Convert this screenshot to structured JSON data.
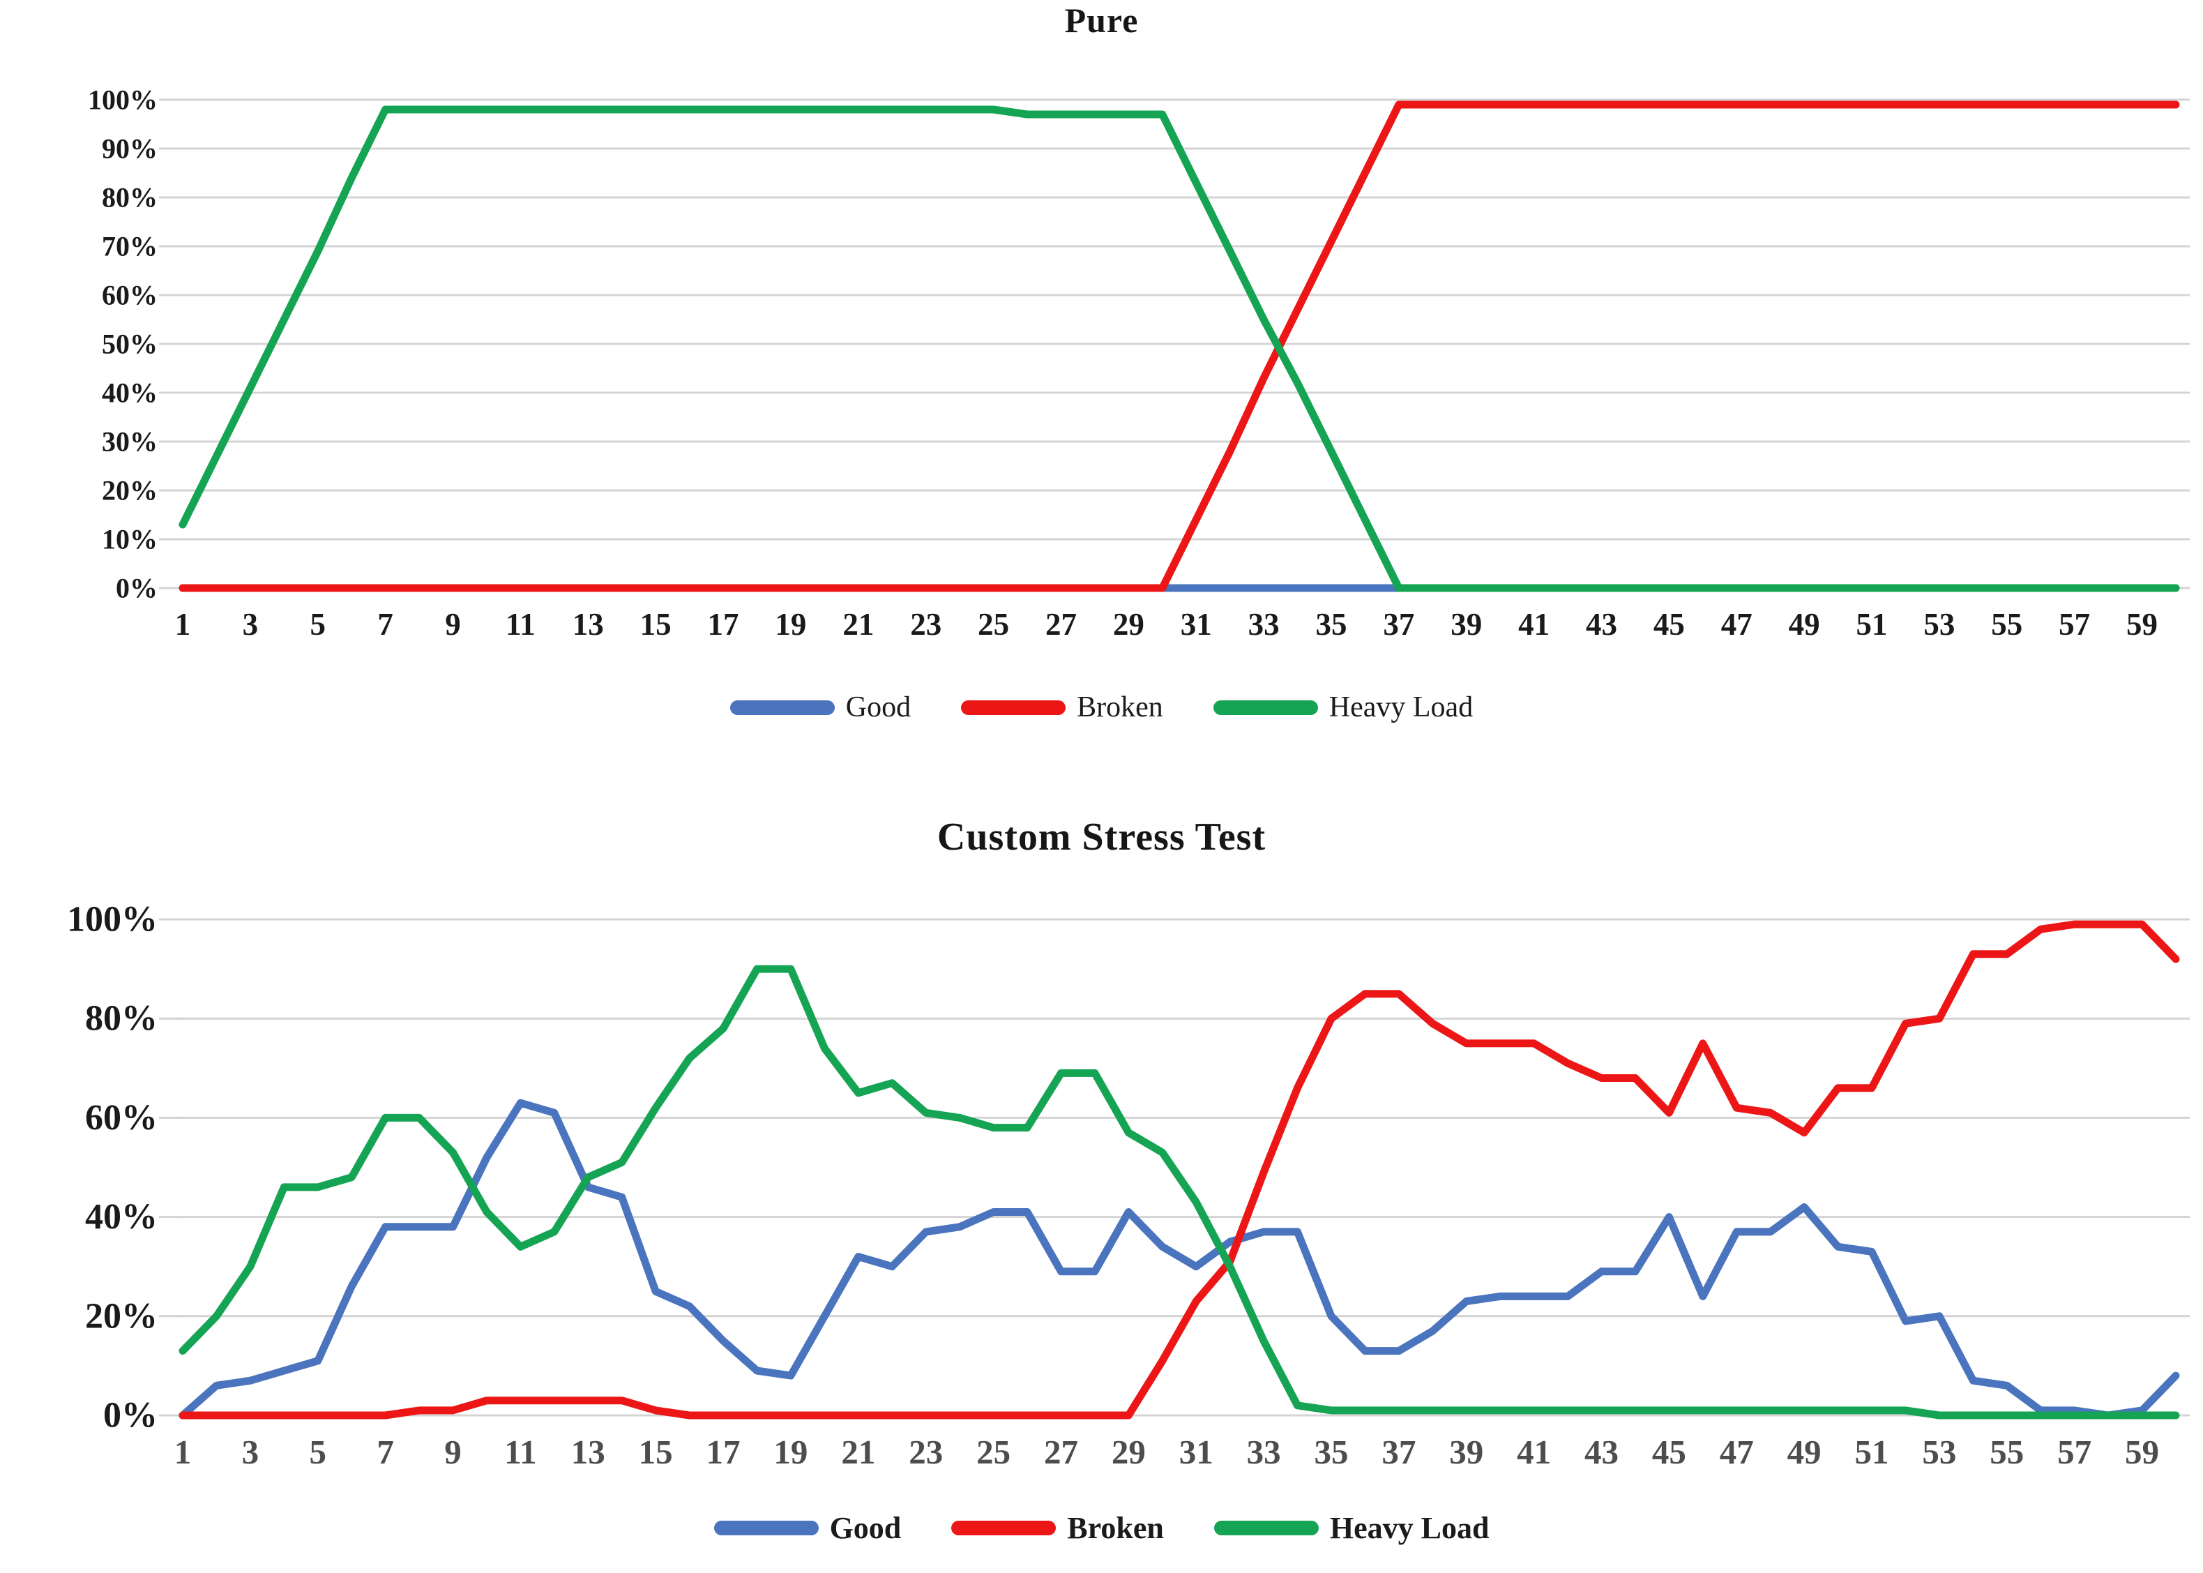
{
  "colors": {
    "background": "#ffffff",
    "gridline": "#d4d4d4",
    "title_text": "#161616",
    "y_labels_top": "#1a1a1a",
    "x_labels_top": "#1a1a1a",
    "y_labels_bottom": "#1a1a1a",
    "x_labels_bottom": "#4d4d4d",
    "good": "#4a74bd",
    "broken": "#ec1616",
    "heavy_load": "#15a453"
  },
  "chart_data": [
    {
      "type": "line",
      "title": "Pure",
      "xlabel": "",
      "ylabel": "",
      "x_start": 1,
      "x_end": 60,
      "ylim": [
        0,
        100
      ],
      "grid": "horizontal",
      "legend_position": "bottom-center",
      "y_ticks": [
        "0%",
        "10%",
        "20%",
        "30%",
        "40%",
        "50%",
        "60%",
        "70%",
        "80%",
        "90%",
        "100%"
      ],
      "x_ticks": [
        "1",
        "3",
        "5",
        "7",
        "9",
        "11",
        "13",
        "15",
        "17",
        "19",
        "21",
        "23",
        "25",
        "27",
        "29",
        "31",
        "33",
        "35",
        "37",
        "39",
        "41",
        "43",
        "45",
        "47",
        "49",
        "51",
        "53",
        "55",
        "57",
        "59"
      ],
      "series": [
        {
          "name": "Good",
          "color": "#4a74bd",
          "values": [
            0,
            0,
            0,
            0,
            0,
            0,
            0,
            0,
            0,
            0,
            0,
            0,
            0,
            0,
            0,
            0,
            0,
            0,
            0,
            0,
            0,
            0,
            0,
            0,
            0,
            0,
            0,
            0,
            0,
            0,
            0,
            0,
            0,
            0,
            0,
            0,
            0,
            0,
            0,
            0,
            0,
            0,
            0,
            0,
            0,
            0,
            0,
            0,
            0,
            0,
            0,
            0,
            0,
            0,
            0,
            0,
            0,
            0,
            0,
            0
          ]
        },
        {
          "name": "Broken",
          "color": "#ec1616",
          "values": [
            0,
            0,
            0,
            0,
            0,
            0,
            0,
            0,
            0,
            0,
            0,
            0,
            0,
            0,
            0,
            0,
            0,
            0,
            0,
            0,
            0,
            0,
            0,
            0,
            0,
            0,
            0,
            0,
            0,
            0,
            14,
            28,
            43,
            57,
            71,
            85,
            99,
            99,
            99,
            99,
            99,
            99,
            99,
            99,
            99,
            99,
            99,
            99,
            99,
            99,
            99,
            99,
            99,
            99,
            99,
            99,
            99,
            99,
            99,
            99
          ]
        },
        {
          "name": "Heavy Load",
          "color": "#15a453",
          "values": [
            13,
            27,
            41,
            55,
            69,
            84,
            98,
            98,
            98,
            98,
            98,
            98,
            98,
            98,
            98,
            98,
            98,
            98,
            98,
            98,
            98,
            98,
            98,
            98,
            98,
            97,
            97,
            97,
            97,
            97,
            83,
            69,
            55,
            42,
            28,
            14,
            0,
            0,
            0,
            0,
            0,
            0,
            0,
            0,
            0,
            0,
            0,
            0,
            0,
            0,
            0,
            0,
            0,
            0,
            0,
            0,
            0,
            0,
            0,
            0
          ]
        }
      ]
    },
    {
      "type": "line",
      "title": "Custom Stress Test",
      "xlabel": "",
      "ylabel": "",
      "x_start": 1,
      "x_end": 60,
      "ylim": [
        0,
        100
      ],
      "grid": "horizontal",
      "legend_position": "bottom-center",
      "y_ticks": [
        "0%",
        "20%",
        "40%",
        "60%",
        "80%",
        "100%"
      ],
      "x_ticks": [
        "1",
        "3",
        "5",
        "7",
        "9",
        "11",
        "13",
        "15",
        "17",
        "19",
        "21",
        "23",
        "25",
        "27",
        "29",
        "31",
        "33",
        "35",
        "37",
        "39",
        "41",
        "43",
        "45",
        "47",
        "49",
        "51",
        "53",
        "55",
        "57",
        "59"
      ],
      "series": [
        {
          "name": "Good",
          "color": "#4a74bd",
          "values": [
            0,
            6,
            7,
            9,
            11,
            26,
            38,
            38,
            38,
            52,
            63,
            61,
            46,
            44,
            25,
            22,
            15,
            9,
            8,
            20,
            32,
            30,
            37,
            38,
            41,
            41,
            29,
            29,
            41,
            34,
            30,
            35,
            37,
            37,
            20,
            13,
            13,
            17,
            23,
            24,
            24,
            24,
            29,
            29,
            40,
            24,
            37,
            37,
            42,
            34,
            33,
            19,
            20,
            7,
            6,
            1,
            1,
            0,
            1,
            8
          ]
        },
        {
          "name": "Broken",
          "color": "#ec1616",
          "values": [
            0,
            0,
            0,
            0,
            0,
            0,
            0,
            1,
            1,
            3,
            3,
            3,
            3,
            3,
            1,
            0,
            0,
            0,
            0,
            0,
            0,
            0,
            0,
            0,
            0,
            0,
            0,
            0,
            0,
            11,
            23,
            31,
            49,
            66,
            80,
            85,
            85,
            79,
            75,
            75,
            75,
            71,
            68,
            68,
            61,
            75,
            62,
            61,
            57,
            66,
            66,
            79,
            80,
            93,
            93,
            98,
            99,
            99,
            99,
            92
          ]
        },
        {
          "name": "Heavy Load",
          "color": "#15a453",
          "values": [
            13,
            20,
            30,
            46,
            46,
            48,
            60,
            60,
            53,
            41,
            34,
            37,
            48,
            51,
            62,
            72,
            78,
            90,
            90,
            74,
            65,
            67,
            61,
            60,
            58,
            58,
            69,
            69,
            57,
            53,
            43,
            30,
            15,
            2,
            1,
            1,
            1,
            1,
            1,
            1,
            1,
            1,
            1,
            1,
            1,
            1,
            1,
            1,
            1,
            1,
            1,
            1,
            0,
            0,
            0,
            0,
            0,
            0,
            0,
            0
          ]
        }
      ]
    }
  ]
}
